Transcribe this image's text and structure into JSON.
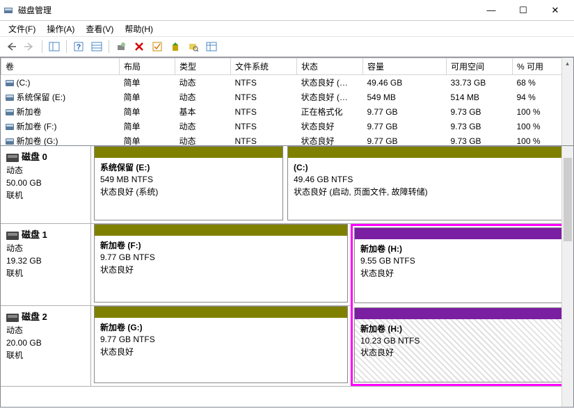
{
  "window": {
    "title": "磁盘管理"
  },
  "menu": {
    "file": "文件(F)",
    "action": "操作(A)",
    "view": "查看(V)",
    "help": "帮助(H)"
  },
  "columns": {
    "volume": "卷",
    "layout": "布局",
    "type": "类型",
    "fs": "文件系统",
    "status": "状态",
    "capacity": "容量",
    "free": "可用空间",
    "pctfree": "% 可用"
  },
  "volumes": [
    {
      "name": "(C:)",
      "layout": "简单",
      "type": "动态",
      "fs": "NTFS",
      "status": "状态良好 (…",
      "capacity": "49.46 GB",
      "free": "33.73 GB",
      "pct": "68 %"
    },
    {
      "name": "系统保留 (E:)",
      "layout": "简单",
      "type": "动态",
      "fs": "NTFS",
      "status": "状态良好 (…",
      "capacity": "549 MB",
      "free": "514 MB",
      "pct": "94 %"
    },
    {
      "name": "新加卷",
      "layout": "简单",
      "type": "基本",
      "fs": "NTFS",
      "status": "正在格式化",
      "capacity": "9.77 GB",
      "free": "9.73 GB",
      "pct": "100 %"
    },
    {
      "name": "新加卷 (F:)",
      "layout": "简单",
      "type": "动态",
      "fs": "NTFS",
      "status": "状态良好",
      "capacity": "9.77 GB",
      "free": "9.73 GB",
      "pct": "100 %"
    },
    {
      "name": "新加卷 (G:)",
      "layout": "简单",
      "type": "动态",
      "fs": "NTFS",
      "status": "状态良好",
      "capacity": "9.77 GB",
      "free": "9.73 GB",
      "pct": "100 %"
    }
  ],
  "disk0": {
    "name": "磁盘 0",
    "type": "动态",
    "size": "50.00 GB",
    "state": "联机",
    "p1": {
      "title": "系统保留  (E:)",
      "info": "549 MB NTFS",
      "status": "状态良好 (系统)",
      "bar": "olive"
    },
    "p2": {
      "title": "(C:)",
      "info": "49.46 GB NTFS",
      "status": "状态良好 (启动, 页面文件, 故障转储)",
      "bar": "olive"
    }
  },
  "disk1": {
    "name": "磁盘 1",
    "type": "动态",
    "size": "19.32 GB",
    "state": "联机",
    "p1": {
      "title": "新加卷  (F:)",
      "info": "9.77 GB NTFS",
      "status": "状态良好",
      "bar": "olive"
    },
    "p2": {
      "title": "新加卷  (H:)",
      "info": "9.55 GB NTFS",
      "status": "状态良好",
      "bar": "purple"
    }
  },
  "disk2": {
    "name": "磁盘 2",
    "type": "动态",
    "size": "20.00 GB",
    "state": "联机",
    "p1": {
      "title": "新加卷  (G:)",
      "info": "9.77 GB NTFS",
      "status": "状态良好",
      "bar": "olive"
    },
    "p2": {
      "title": "新加卷  (H:)",
      "info": "10.23 GB NTFS",
      "status": "状态良好",
      "bar": "purple"
    }
  },
  "colors": {
    "olive": "#808000",
    "purple": "#7b1fa2",
    "highlight": "#ff00ff"
  }
}
